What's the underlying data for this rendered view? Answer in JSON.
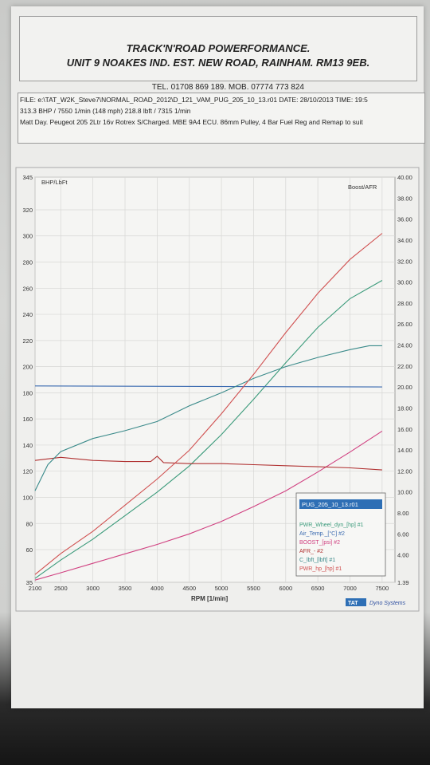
{
  "header": {
    "line1": "TRACK'N'ROAD POWERFORMANCE.",
    "line2": "UNIT 9 NOAKES IND. EST. NEW ROAD, RAINHAM. RM13 9EB.",
    "tel": "TEL. 01708 869 189. MOB. 07774 773 824"
  },
  "info": {
    "file": "FILE: e:\\TAT_W2K_Steve7\\NORMAL_ROAD_2012\\D_121_VAM_PUG_205_10_13.r01  DATE: 28/10/2013  TIME: 19:5",
    "peak": "313.3 BHP / 7550 1/min (148 mph)    218.8 lbft / 7315 1/min",
    "desc": "Matt Day. Peugeot 205 2Ltr 16v Rotrex S/Charged. MBE 9A4 ECU. 86mm Pulley, 4 Bar Fuel Reg and Remap to suit"
  },
  "chart_data": {
    "type": "line",
    "left_axis_title": "BHP/LbFt",
    "right_axis_title": "Boost/AFR",
    "xlabel": "RPM  [1/min]",
    "x_ticks": [
      2100,
      2500,
      3000,
      3500,
      4000,
      4500,
      5000,
      5500,
      6000,
      6500,
      7000,
      7500
    ],
    "x_range": [
      2100,
      7700
    ],
    "y_left_range": [
      35,
      345
    ],
    "y_left_ticks": [
      35,
      60,
      80,
      100,
      120,
      140,
      160,
      180,
      200,
      220,
      240,
      260,
      280,
      300,
      320,
      345
    ],
    "y_right_range": [
      1.39,
      40.0
    ],
    "y_right_ticks": [
      1.39,
      4.0,
      6.0,
      8.0,
      10.0,
      12.0,
      14.0,
      16.0,
      18.0,
      20.0,
      22.0,
      24.0,
      26.0,
      28.0,
      30.0,
      32.0,
      34.0,
      36.0,
      38.0,
      40.0
    ],
    "grid": true,
    "legend_position": "bottom-right",
    "legend_header": "PUG_205_10_13.r01",
    "series": [
      {
        "name": "PWR_Wheel_dyn_[hp] #1",
        "axis": "left",
        "color": "#3a9a7a",
        "x": [
          2100,
          2500,
          3000,
          3500,
          4000,
          4500,
          5000,
          5500,
          6000,
          6500,
          7000,
          7500
        ],
        "y": [
          38,
          52,
          68,
          86,
          104,
          124,
          148,
          175,
          203,
          230,
          252,
          266
        ]
      },
      {
        "name": "Air_Temp._[°C] #2",
        "axis": "right",
        "color": "#3a6ab0",
        "x": [
          2100,
          7500
        ],
        "y": [
          20.1,
          20.0
        ]
      },
      {
        "name": "BOOST_[psi] #2",
        "axis": "right",
        "color": "#d04080",
        "x": [
          2100,
          2500,
          3000,
          3500,
          4000,
          4500,
          5000,
          5500,
          6000,
          6500,
          7000,
          7500
        ],
        "y": [
          1.6,
          2.3,
          3.2,
          4.1,
          5.0,
          6.0,
          7.2,
          8.6,
          10.1,
          11.9,
          13.8,
          15.8
        ]
      },
      {
        "name": "AFR_- #2",
        "axis": "right",
        "color": "#b03030",
        "x": [
          2100,
          2500,
          3000,
          3500,
          3900,
          4000,
          4100,
          4500,
          5000,
          5500,
          6000,
          6500,
          7000,
          7500
        ],
        "y": [
          13.0,
          13.3,
          13.0,
          12.9,
          12.9,
          13.4,
          12.8,
          12.7,
          12.7,
          12.6,
          12.5,
          12.4,
          12.3,
          12.1
        ]
      },
      {
        "name": "C_lbft_[lbft] #1",
        "axis": "left",
        "color": "#3a8a8a",
        "x": [
          2100,
          2300,
          2500,
          3000,
          3500,
          4000,
          4500,
          5000,
          5500,
          6000,
          6500,
          7000,
          7300,
          7500
        ],
        "y": [
          105,
          125,
          135,
          145,
          151,
          158,
          170,
          180,
          191,
          200,
          207,
          213,
          216,
          216
        ]
      },
      {
        "name": "PWR_hp_[hp] #1",
        "axis": "left",
        "color": "#d05050",
        "x": [
          2100,
          2500,
          3000,
          3500,
          4000,
          4500,
          5000,
          5500,
          6000,
          6500,
          7000,
          7500
        ],
        "y": [
          41,
          57,
          74,
          94,
          114,
          136,
          164,
          194,
          226,
          256,
          282,
          302
        ]
      }
    ],
    "brand": "TAT",
    "brand_text": "Dyno Systems"
  },
  "colors": {
    "grid": "#d7d7d5",
    "axis": "#555555",
    "legend_header_bg": "#2e6fb5"
  }
}
